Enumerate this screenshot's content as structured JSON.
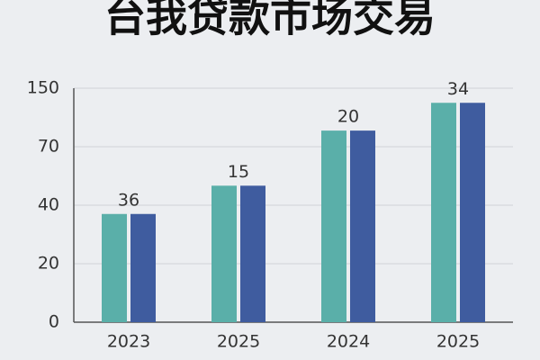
{
  "chart_data": {
    "type": "bar",
    "title": "台我贷款市场交易",
    "categories": [
      "2023",
      "2025",
      "2024",
      "2025"
    ],
    "series": [
      {
        "color": "#5aafa9",
        "values": [
          37,
          50,
          92,
          130
        ]
      },
      {
        "color": "#3f5c9f",
        "values": [
          37,
          50,
          92,
          130
        ]
      }
    ],
    "annotations": [
      "36",
      "15",
      "20",
      "34"
    ],
    "ylim": [
      0,
      150
    ],
    "yticks": [
      0,
      20,
      40,
      70,
      150
    ],
    "grid": true
  }
}
